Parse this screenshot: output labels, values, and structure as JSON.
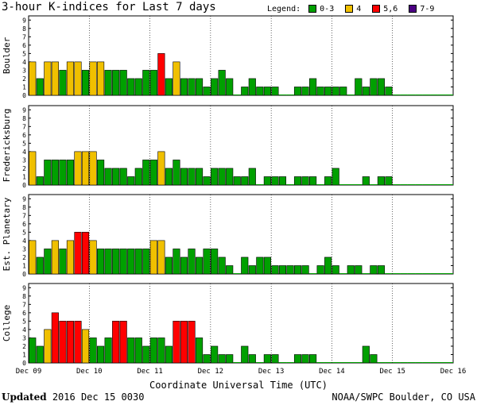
{
  "title": "3-hour K-indices for Last 7 days",
  "legend": {
    "title": "Legend:",
    "items": [
      {
        "label": "0-3",
        "color": "#00a000"
      },
      {
        "label": "4",
        "color": "#f0c000"
      },
      {
        "label": "5,6",
        "color": "#ff0000"
      },
      {
        "label": "7-9",
        "color": "#4b0082"
      }
    ]
  },
  "footer": {
    "updated_label": "Updated",
    "updated_value": "2016 Dec 15 0030",
    "credit": "NOAA/SWPC Boulder, CO USA"
  },
  "chart_data": {
    "type": "bar",
    "xlabel": "Coordinate Universal Time (UTC)",
    "x_tick_labels": [
      "Dec 09",
      "Dec 10",
      "Dec 11",
      "Dec 12",
      "Dec 13",
      "Dec 14",
      "Dec 15",
      "Dec 16"
    ],
    "y_tick_labels": [
      "0",
      "1",
      "2",
      "3",
      "4",
      "5",
      "6",
      "7",
      "8",
      "9"
    ],
    "ylim": [
      0,
      9
    ],
    "bins_per_day": 8,
    "days": 7,
    "color_scale": {
      "0-3": "#00a000",
      "4": "#f0c000",
      "5,6": "#ff0000",
      "7-9": "#4b0082"
    },
    "series": [
      {
        "name": "Boulder",
        "values": [
          4,
          2,
          4,
          4,
          3,
          4,
          4,
          3,
          4,
          4,
          3,
          3,
          3,
          2,
          2,
          3,
          3,
          5,
          2,
          4,
          2,
          2,
          2,
          1,
          2,
          3,
          2,
          0,
          1,
          2,
          1,
          1,
          1,
          0,
          0,
          1,
          1,
          2,
          1,
          1,
          1,
          1,
          0,
          2,
          1,
          2,
          2,
          1,
          0,
          0,
          0,
          0,
          0,
          0,
          0,
          0
        ]
      },
      {
        "name": "Fredericksburg",
        "values": [
          4,
          1,
          3,
          3,
          3,
          3,
          4,
          4,
          4,
          3,
          2,
          2,
          2,
          1,
          2,
          3,
          3,
          4,
          2,
          3,
          2,
          2,
          2,
          1,
          2,
          2,
          2,
          1,
          1,
          2,
          0,
          1,
          1,
          1,
          0,
          1,
          1,
          1,
          0,
          1,
          2,
          0,
          0,
          0,
          1,
          0,
          1,
          1,
          0,
          0,
          0,
          0,
          0,
          0,
          0,
          0
        ]
      },
      {
        "name": "Est. Planetary",
        "values": [
          4,
          2,
          3,
          4,
          3,
          4,
          5,
          5,
          4,
          3,
          3,
          3,
          3,
          3,
          3,
          3,
          4,
          4,
          2,
          3,
          2,
          3,
          2,
          3,
          3,
          2,
          1,
          0,
          2,
          1,
          2,
          2,
          1,
          1,
          1,
          1,
          1,
          0,
          1,
          2,
          1,
          0,
          1,
          1,
          0,
          1,
          1,
          0,
          0,
          0,
          0,
          0,
          0,
          0,
          0,
          0
        ]
      },
      {
        "name": "College",
        "values": [
          3,
          2,
          4,
          6,
          5,
          5,
          5,
          4,
          3,
          2,
          3,
          5,
          5,
          3,
          3,
          2,
          3,
          3,
          2,
          5,
          5,
          5,
          3,
          1,
          2,
          1,
          1,
          0,
          2,
          1,
          0,
          1,
          1,
          0,
          0,
          1,
          1,
          1,
          0,
          0,
          0,
          0,
          0,
          0,
          2,
          1,
          0,
          0,
          0,
          0,
          0,
          0,
          0,
          0,
          0,
          0
        ]
      }
    ]
  }
}
